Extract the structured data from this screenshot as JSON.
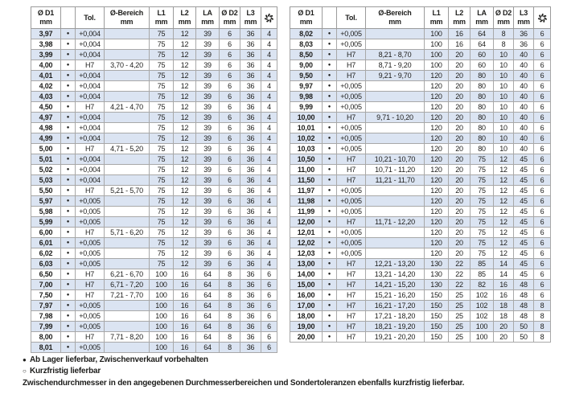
{
  "columns": [
    {
      "name": "col-d1",
      "label": "Ø D1",
      "unit": "mm"
    },
    {
      "name": "col-availability",
      "label": "",
      "unit": ""
    },
    {
      "name": "col-tol",
      "label": "Tol.",
      "unit": ""
    },
    {
      "name": "col-bereich",
      "label": "Ø-Bereich",
      "unit": "mm"
    },
    {
      "name": "col-l1",
      "label": "L1",
      "unit": "mm"
    },
    {
      "name": "col-l2",
      "label": "L2",
      "unit": "mm"
    },
    {
      "name": "col-la",
      "label": "LA",
      "unit": "mm"
    },
    {
      "name": "col-d2",
      "label": "Ø D2",
      "unit": "mm"
    },
    {
      "name": "col-l3",
      "label": "L3",
      "unit": "mm"
    },
    {
      "name": "col-flutes",
      "label": "",
      "unit": "",
      "icon": "flutes-icon"
    }
  ],
  "tables": {
    "left": {
      "rows": [
        [
          "3,97",
          "●",
          "+0,004",
          "",
          "75",
          "12",
          "39",
          "6",
          "36",
          "4"
        ],
        [
          "3,98",
          "●",
          "+0,004",
          "",
          "75",
          "12",
          "39",
          "6",
          "36",
          "4"
        ],
        [
          "3,99",
          "●",
          "+0,004",
          "",
          "75",
          "12",
          "39",
          "6",
          "36",
          "4"
        ],
        [
          "4,00",
          "●",
          "H7",
          "3,70 - 4,20",
          "75",
          "12",
          "39",
          "6",
          "36",
          "4"
        ],
        [
          "4,01",
          "●",
          "+0,004",
          "",
          "75",
          "12",
          "39",
          "6",
          "36",
          "4"
        ],
        [
          "4,02",
          "●",
          "+0,004",
          "",
          "75",
          "12",
          "39",
          "6",
          "36",
          "4"
        ],
        [
          "4,03",
          "●",
          "+0,004",
          "",
          "75",
          "12",
          "39",
          "6",
          "36",
          "4"
        ],
        [
          "4,50",
          "●",
          "H7",
          "4,21 - 4,70",
          "75",
          "12",
          "39",
          "6",
          "36",
          "4"
        ],
        [
          "4,97",
          "●",
          "+0,004",
          "",
          "75",
          "12",
          "39",
          "6",
          "36",
          "4"
        ],
        [
          "4,98",
          "●",
          "+0,004",
          "",
          "75",
          "12",
          "39",
          "6",
          "36",
          "4"
        ],
        [
          "4,99",
          "●",
          "+0,004",
          "",
          "75",
          "12",
          "39",
          "6",
          "36",
          "4"
        ],
        [
          "5,00",
          "●",
          "H7",
          "4,71 - 5,20",
          "75",
          "12",
          "39",
          "6",
          "36",
          "4"
        ],
        [
          "5,01",
          "●",
          "+0,004",
          "",
          "75",
          "12",
          "39",
          "6",
          "36",
          "4"
        ],
        [
          "5,02",
          "●",
          "+0,004",
          "",
          "75",
          "12",
          "39",
          "6",
          "36",
          "4"
        ],
        [
          "5,03",
          "●",
          "+0,004",
          "",
          "75",
          "12",
          "39",
          "6",
          "36",
          "4"
        ],
        [
          "5,50",
          "●",
          "H7",
          "5,21 - 5,70",
          "75",
          "12",
          "39",
          "6",
          "36",
          "4"
        ],
        [
          "5,97",
          "●",
          "+0,005",
          "",
          "75",
          "12",
          "39",
          "6",
          "36",
          "4"
        ],
        [
          "5,98",
          "●",
          "+0,005",
          "",
          "75",
          "12",
          "39",
          "6",
          "36",
          "4"
        ],
        [
          "5,99",
          "●",
          "+0,005",
          "",
          "75",
          "12",
          "39",
          "6",
          "36",
          "4"
        ],
        [
          "6,00",
          "●",
          "H7",
          "5,71 - 6,20",
          "75",
          "12",
          "39",
          "6",
          "36",
          "4"
        ],
        [
          "6,01",
          "●",
          "+0,005",
          "",
          "75",
          "12",
          "39",
          "6",
          "36",
          "4"
        ],
        [
          "6,02",
          "●",
          "+0,005",
          "",
          "75",
          "12",
          "39",
          "6",
          "36",
          "4"
        ],
        [
          "6,03",
          "●",
          "+0,005",
          "",
          "75",
          "12",
          "39",
          "6",
          "36",
          "4"
        ],
        [
          "6,50",
          "●",
          "H7",
          "6,21 - 6,70",
          "100",
          "16",
          "64",
          "8",
          "36",
          "6"
        ],
        [
          "7,00",
          "●",
          "H7",
          "6,71 - 7,20",
          "100",
          "16",
          "64",
          "8",
          "36",
          "6"
        ],
        [
          "7,50",
          "●",
          "H7",
          "7,21 - 7,70",
          "100",
          "16",
          "64",
          "8",
          "36",
          "6"
        ],
        [
          "7,97",
          "●",
          "+0,005",
          "",
          "100",
          "16",
          "64",
          "8",
          "36",
          "6"
        ],
        [
          "7,98",
          "●",
          "+0,005",
          "",
          "100",
          "16",
          "64",
          "8",
          "36",
          "6"
        ],
        [
          "7,99",
          "●",
          "+0,005",
          "",
          "100",
          "16",
          "64",
          "8",
          "36",
          "6"
        ],
        [
          "8,00",
          "●",
          "H7",
          "7,71 - 8,20",
          "100",
          "16",
          "64",
          "8",
          "36",
          "6"
        ],
        [
          "8,01",
          "●",
          "+0,005",
          "",
          "100",
          "16",
          "64",
          "8",
          "36",
          "6"
        ]
      ]
    },
    "right": {
      "rows": [
        [
          "8,02",
          "●",
          "+0,005",
          "",
          "100",
          "16",
          "64",
          "8",
          "36",
          "6"
        ],
        [
          "8,03",
          "●",
          "+0,005",
          "",
          "100",
          "16",
          "64",
          "8",
          "36",
          "6"
        ],
        [
          "8,50",
          "●",
          "H7",
          "8,21 - 8,70",
          "100",
          "20",
          "60",
          "10",
          "40",
          "6"
        ],
        [
          "9,00",
          "●",
          "H7",
          "8,71 - 9,20",
          "100",
          "20",
          "60",
          "10",
          "40",
          "6"
        ],
        [
          "9,50",
          "●",
          "H7",
          "9,21 - 9,70",
          "120",
          "20",
          "80",
          "10",
          "40",
          "6"
        ],
        [
          "9,97",
          "●",
          "+0,005",
          "",
          "120",
          "20",
          "80",
          "10",
          "40",
          "6"
        ],
        [
          "9,98",
          "●",
          "+0,005",
          "",
          "120",
          "20",
          "80",
          "10",
          "40",
          "6"
        ],
        [
          "9,99",
          "●",
          "+0,005",
          "",
          "120",
          "20",
          "80",
          "10",
          "40",
          "6"
        ],
        [
          "10,00",
          "●",
          "H7",
          "9,71 - 10,20",
          "120",
          "20",
          "80",
          "10",
          "40",
          "6"
        ],
        [
          "10,01",
          "●",
          "+0,005",
          "",
          "120",
          "20",
          "80",
          "10",
          "40",
          "6"
        ],
        [
          "10,02",
          "●",
          "+0,005",
          "",
          "120",
          "20",
          "80",
          "10",
          "40",
          "6"
        ],
        [
          "10,03",
          "●",
          "+0,005",
          "",
          "120",
          "20",
          "80",
          "10",
          "40",
          "6"
        ],
        [
          "10,50",
          "●",
          "H7",
          "10,21 - 10,70",
          "120",
          "20",
          "75",
          "12",
          "45",
          "6"
        ],
        [
          "11,00",
          "●",
          "H7",
          "10,71 - 11,20",
          "120",
          "20",
          "75",
          "12",
          "45",
          "6"
        ],
        [
          "11,50",
          "●",
          "H7",
          "11,21 - 11,70",
          "120",
          "20",
          "75",
          "12",
          "45",
          "6"
        ],
        [
          "11,97",
          "●",
          "+0,005",
          "",
          "120",
          "20",
          "75",
          "12",
          "45",
          "6"
        ],
        [
          "11,98",
          "●",
          "+0,005",
          "",
          "120",
          "20",
          "75",
          "12",
          "45",
          "6"
        ],
        [
          "11,99",
          "●",
          "+0,005",
          "",
          "120",
          "20",
          "75",
          "12",
          "45",
          "6"
        ],
        [
          "12,00",
          "●",
          "H7",
          "11,71 - 12,20",
          "120",
          "20",
          "75",
          "12",
          "45",
          "6"
        ],
        [
          "12,01",
          "●",
          "+0,005",
          "",
          "120",
          "20",
          "75",
          "12",
          "45",
          "6"
        ],
        [
          "12,02",
          "●",
          "+0,005",
          "",
          "120",
          "20",
          "75",
          "12",
          "45",
          "6"
        ],
        [
          "12,03",
          "●",
          "+0,005",
          "",
          "120",
          "20",
          "75",
          "12",
          "45",
          "6"
        ],
        [
          "13,00",
          "●",
          "H7",
          "12,21 - 13,20",
          "130",
          "22",
          "85",
          "14",
          "45",
          "6"
        ],
        [
          "14,00",
          "●",
          "H7",
          "13,21 - 14,20",
          "130",
          "22",
          "85",
          "14",
          "45",
          "6"
        ],
        [
          "15,00",
          "●",
          "H7",
          "14,21 - 15,20",
          "130",
          "22",
          "82",
          "16",
          "48",
          "6"
        ],
        [
          "16,00",
          "●",
          "H7",
          "15,21 - 16,20",
          "150",
          "25",
          "102",
          "16",
          "48",
          "6"
        ],
        [
          "17,00",
          "●",
          "H7",
          "16,21 - 17,20",
          "150",
          "25",
          "102",
          "18",
          "48",
          "8"
        ],
        [
          "18,00",
          "●",
          "H7",
          "17,21 - 18,20",
          "150",
          "25",
          "102",
          "18",
          "48",
          "8"
        ],
        [
          "19,00",
          "●",
          "H7",
          "18,21 - 19,20",
          "150",
          "25",
          "100",
          "20",
          "50",
          "8"
        ],
        [
          "20,00",
          "●",
          "H7",
          "19,21 - 20,20",
          "150",
          "25",
          "100",
          "20",
          "50",
          "8"
        ]
      ]
    }
  },
  "legend": [
    {
      "marker": "●",
      "text": "Ab Lager lieferbar, Zwischenverkauf vorbehalten"
    },
    {
      "marker": "○",
      "text": "Kurzfristig lieferbar"
    }
  ],
  "footnote": "Zwischendurchmesser in den angegebenen Durchmesserbereichen und Sondertoleranzen ebenfalls kurzfristig lieferbar.",
  "colors": {
    "row_shade": "#dbe4f2",
    "border": "#a8a8a8",
    "text": "#1d1d1b"
  }
}
